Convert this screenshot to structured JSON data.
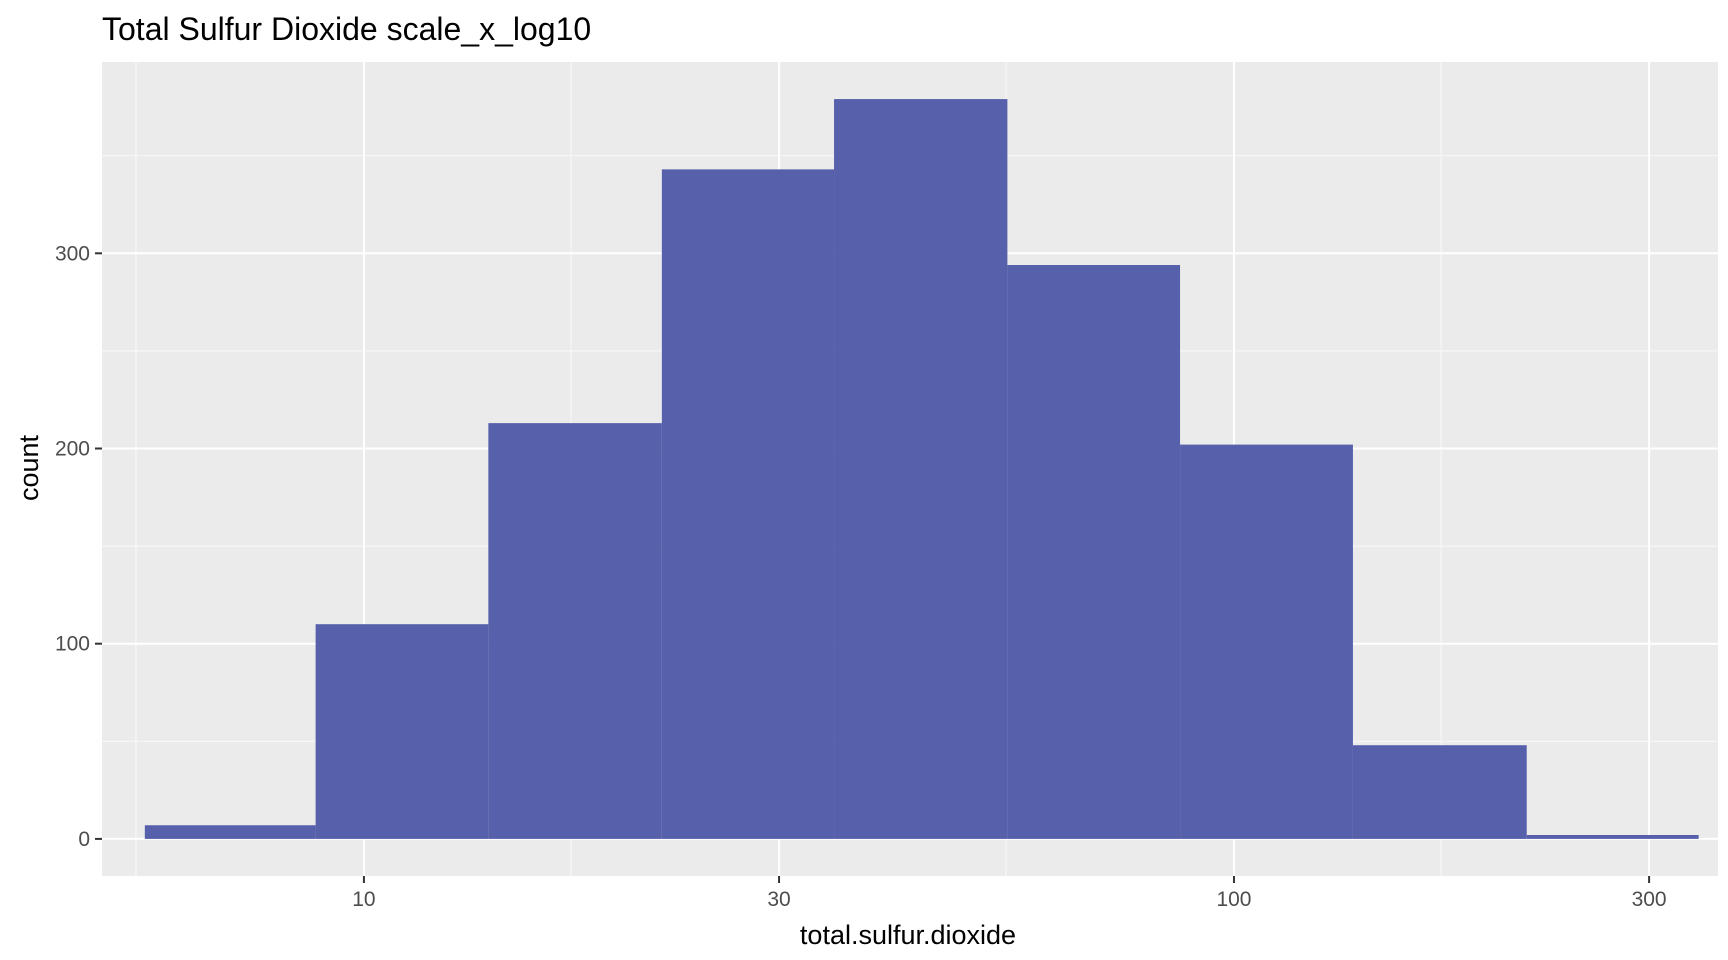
{
  "chart_data": {
    "type": "bar",
    "title": "Total Sulfur Dioxide scale_x_log10",
    "xlabel": "total.sulfur.dioxide",
    "ylabel": "count",
    "x_scale": "log10",
    "xlim": [
      5.0,
      360
    ],
    "ylim": [
      -19,
      398
    ],
    "grid": true,
    "legend": "none",
    "colors": {
      "bar_fill": "#5760AB",
      "panel_background": "#EBEBEB",
      "grid_major": "#FFFFFF",
      "grid_minor": "#F7F7F7",
      "tick_text": "#4D4D4D"
    },
    "x_ticks": [
      {
        "value": 10,
        "label": "10"
      },
      {
        "value": 30,
        "label": "30"
      },
      {
        "value": 100,
        "label": "100"
      },
      {
        "value": 300,
        "label": "300"
      }
    ],
    "x_minor_ticks": [
      5.47,
      17.3,
      54.7,
      173
    ],
    "y_ticks": [
      {
        "value": 0,
        "label": "0"
      },
      {
        "value": 100,
        "label": "100"
      },
      {
        "value": 200,
        "label": "200"
      },
      {
        "value": 300,
        "label": "300"
      }
    ],
    "y_minor_ticks": [
      50,
      150,
      250,
      350
    ],
    "bins": [
      {
        "x0": 5.6,
        "x1": 8.8,
        "count": 7
      },
      {
        "x0": 8.8,
        "x1": 13.9,
        "count": 110
      },
      {
        "x0": 13.9,
        "x1": 22.0,
        "count": 213
      },
      {
        "x0": 22.0,
        "x1": 34.7,
        "count": 343
      },
      {
        "x0": 34.7,
        "x1": 54.9,
        "count": 379
      },
      {
        "x0": 54.9,
        "x1": 86.7,
        "count": 294
      },
      {
        "x0": 86.7,
        "x1": 137,
        "count": 202
      },
      {
        "x0": 137,
        "x1": 217,
        "count": 48
      },
      {
        "x0": 217,
        "x1": 342,
        "count": 2
      }
    ]
  }
}
